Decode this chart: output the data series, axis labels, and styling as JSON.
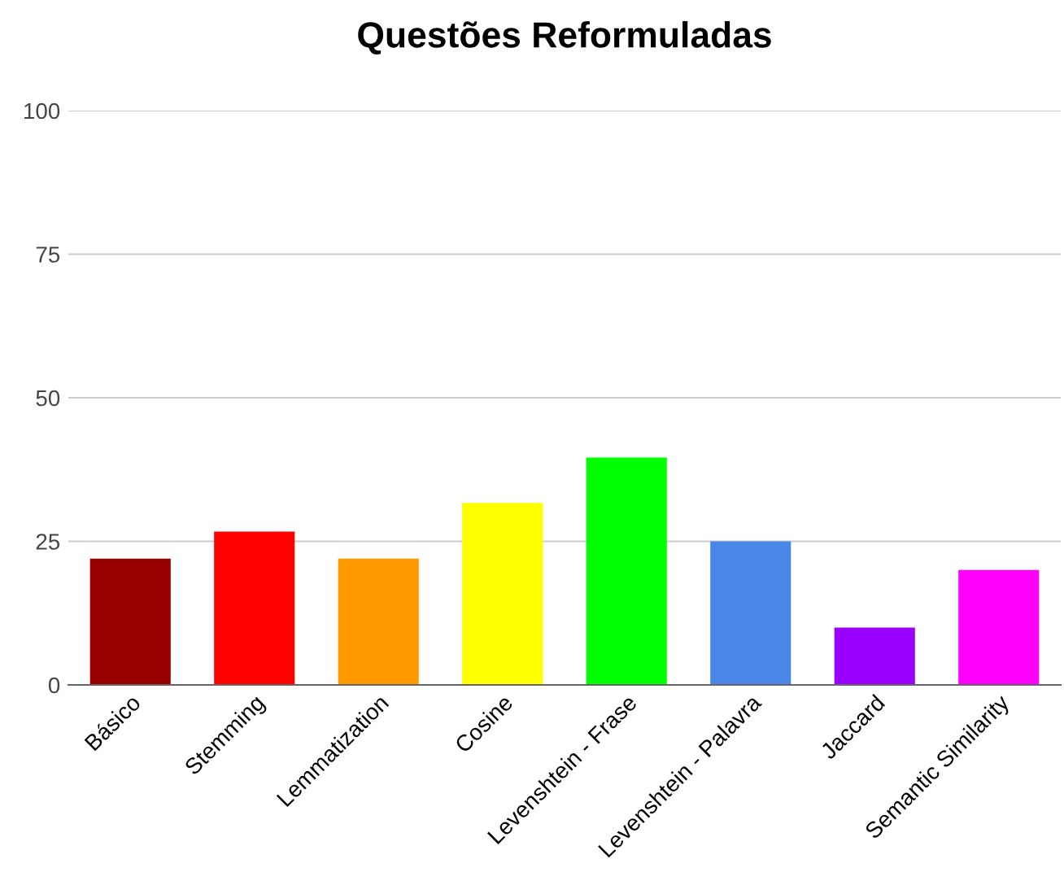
{
  "chart_data": {
    "type": "bar",
    "title": "Questões Reformuladas",
    "categories": [
      "Básico",
      "Stemming",
      "Lemmatization",
      "Cosine",
      "Levenshtein - Frase",
      "Levenshtein - Palavra",
      "Jaccard",
      "Semantic Similarity"
    ],
    "values": [
      22,
      26.7,
      22,
      31.7,
      39.6,
      25,
      10,
      20
    ],
    "colors": [
      "#980000",
      "#ff0000",
      "#ff9900",
      "#ffff00",
      "#00ff00",
      "#4a86e8",
      "#9900ff",
      "#ff00ff"
    ],
    "ylim": [
      0,
      100
    ],
    "yticks": [
      0,
      25,
      50,
      75,
      100
    ],
    "grid": "y"
  }
}
